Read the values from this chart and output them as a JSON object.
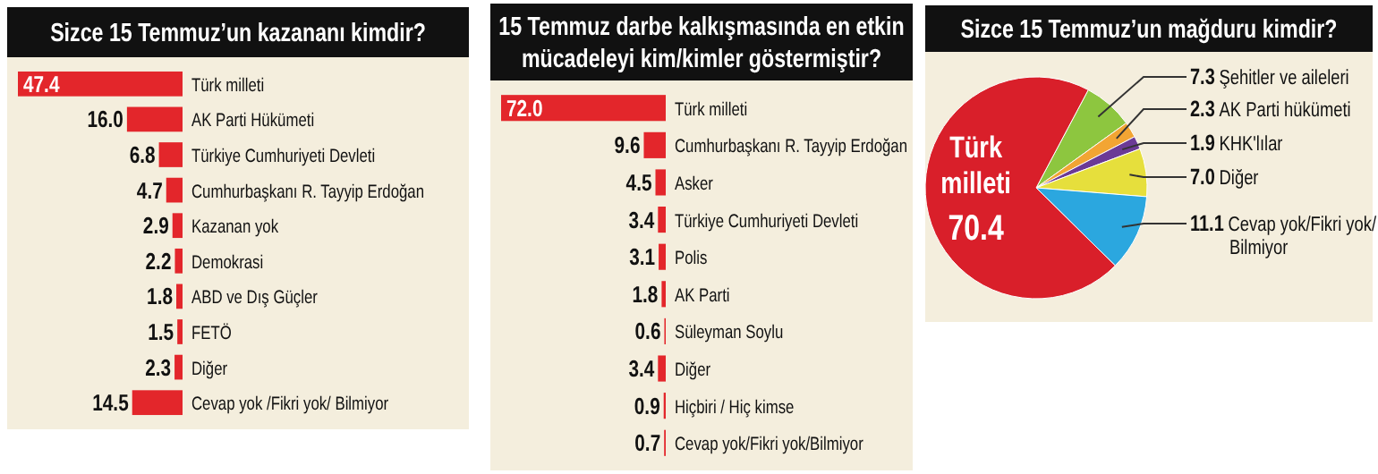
{
  "chart_data": [
    {
      "type": "bar",
      "orientation": "horizontal",
      "title": "Sizce 15 Temmuz’un kazananı kimdir?",
      "categories": [
        "Türk milleti",
        "AK Parti Hükümeti",
        "Türkiye Cumhuriyeti Devleti",
        "Cumhurbaşkanı R. Tayyip Erdoğan",
        "Kazanan yok",
        "Demokrasi",
        "ABD ve Dış Güçler",
        "FETÖ",
        "Diğer",
        "Cevap yok /Fikri yok/ Bilmiyor"
      ],
      "values": [
        47.4,
        16.0,
        6.8,
        4.7,
        2.9,
        2.2,
        1.8,
        1.5,
        2.3,
        14.5
      ],
      "value_labels": [
        "47.4",
        "16.0",
        "6.8",
        "4.7",
        "2.9",
        "2.2",
        "1.8",
        "1.5",
        "2.3",
        "14.5"
      ],
      "color": "#e3262b",
      "data_labels": true
    },
    {
      "type": "bar",
      "orientation": "horizontal",
      "title": "15 Temmuz darbe kalkışmasında en etkin mücadeleyi kim/kimler göstermiştir?",
      "categories": [
        "Türk milleti",
        "Cumhurbaşkanı R. Tayyip Erdoğan",
        "Asker",
        "Türkiye Cumhuriyeti Devleti",
        "Polis",
        "AK Parti",
        "Süleyman Soylu",
        "Diğer",
        "Hiçbiri / Hiç kimse",
        "Cevap yok/Fikri yok/Bilmiyor"
      ],
      "values": [
        72.0,
        9.6,
        4.5,
        3.4,
        3.1,
        1.8,
        0.6,
        3.4,
        0.9,
        0.7
      ],
      "value_labels": [
        "72.0",
        "9.6",
        "4.5",
        "3.4",
        "3.1",
        "1.8",
        "0.6",
        "3.4",
        "0.9",
        "0.7"
      ],
      "color": "#e3262b",
      "data_labels": true
    },
    {
      "type": "pie",
      "title": "Sizce 15 Temmuz’un mağduru kimdir?",
      "categories": [
        "Şehitler ve aileleri",
        "AK Parti hükümeti",
        "KHK'lılar",
        "Diğer",
        "Cevap yok/Fikri yok/ Bilmiyor",
        "Türk milleti"
      ],
      "values": [
        7.3,
        2.3,
        1.9,
        7.0,
        11.1,
        70.4
      ],
      "value_labels": [
        "7.3",
        "2.3",
        "1.9",
        "7.0",
        "11.1",
        "70.4"
      ],
      "colors": [
        "#8dc63f",
        "#f2a533",
        "#6b3a96",
        "#e6df3c",
        "#2ba7df",
        "#d91f2a"
      ],
      "data_labels": true
    }
  ]
}
